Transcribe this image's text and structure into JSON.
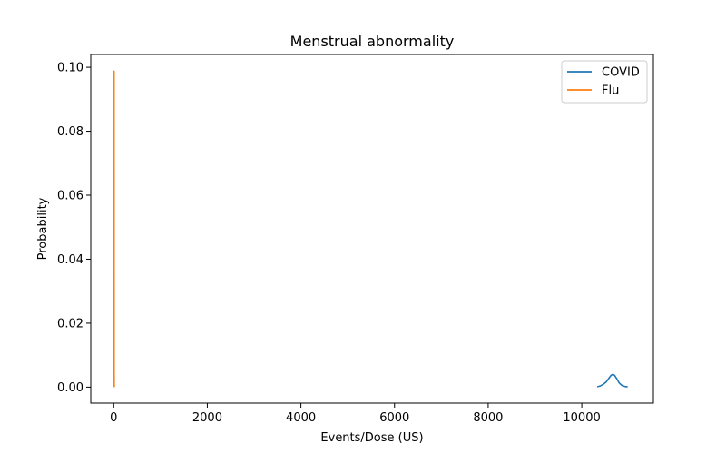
{
  "chart_data": {
    "type": "line",
    "title": "Menstrual abnormality",
    "xlabel": "Events/Dose (US)",
    "ylabel": "Probability",
    "xlim": [
      -490,
      11530
    ],
    "ylim": [
      -0.005,
      0.104
    ],
    "xticks": [
      0,
      2000,
      4000,
      6000,
      8000,
      10000
    ],
    "xtick_labels": [
      "0",
      "2000",
      "4000",
      "6000",
      "8000",
      "10000"
    ],
    "yticks": [
      0.0,
      0.02,
      0.04,
      0.06,
      0.08,
      0.1
    ],
    "ytick_labels": [
      "0.00",
      "0.02",
      "0.04",
      "0.06",
      "0.08",
      "0.10"
    ],
    "grid": false,
    "legend_position": "top-right",
    "series": [
      {
        "name": "COVID",
        "color": "#1f77b4",
        "x": [
          10330,
          10400,
          10460,
          10520,
          10580,
          10620,
          10660,
          10700,
          10740,
          10800,
          10860,
          10920,
          10980
        ],
        "y": [
          0.0001,
          0.0004,
          0.0009,
          0.0016,
          0.0028,
          0.0036,
          0.004,
          0.0037,
          0.0028,
          0.0013,
          0.0005,
          0.0002,
          0.0001
        ]
      },
      {
        "name": "Flu",
        "color": "#ff7f0e",
        "x": [
          5,
          6,
          7,
          8,
          9,
          10,
          11
        ],
        "y": [
          0.0,
          0.003,
          0.04,
          0.0988,
          0.04,
          0.003,
          0.0
        ]
      }
    ]
  }
}
